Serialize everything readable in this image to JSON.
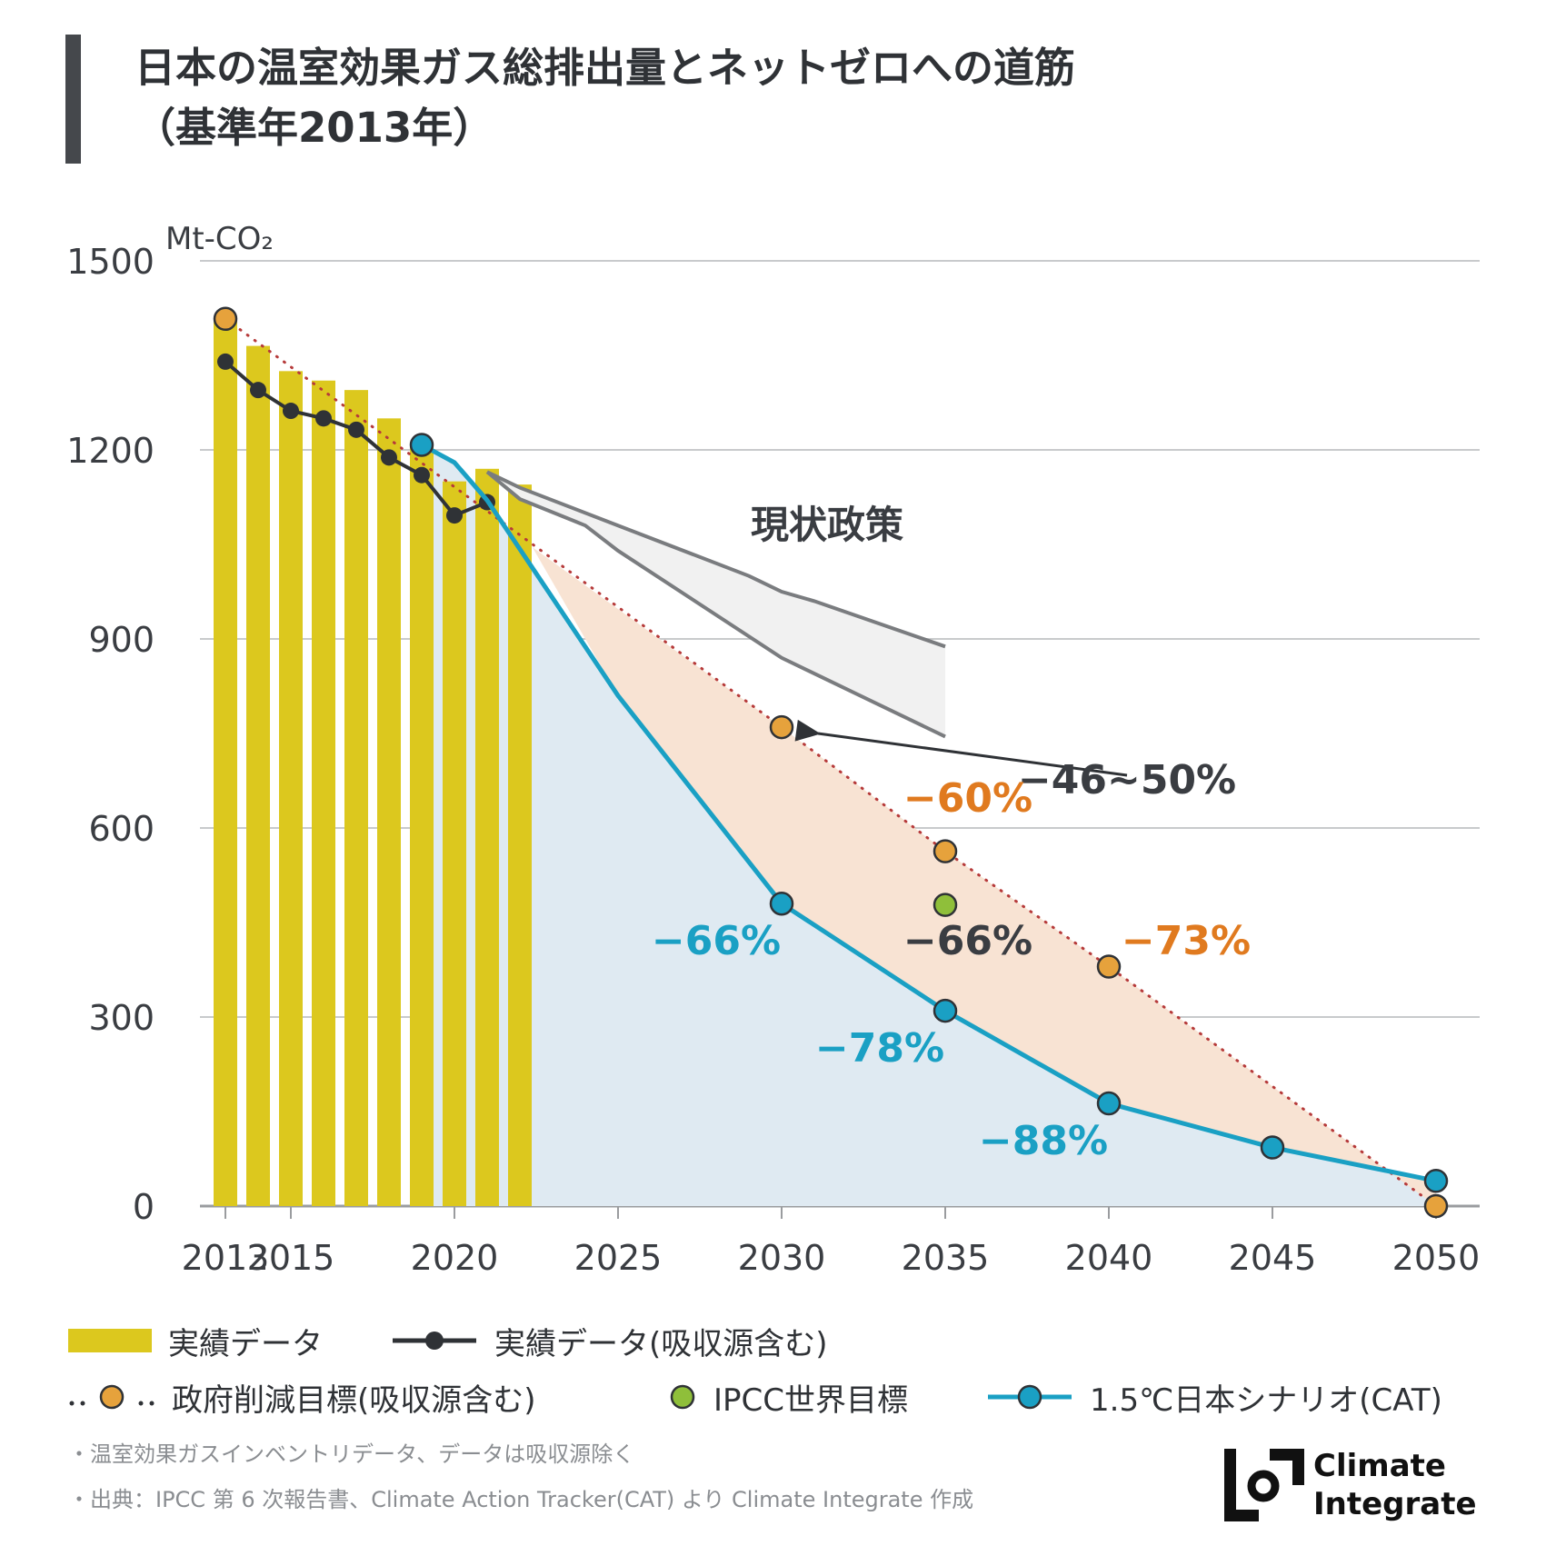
{
  "title": {
    "line1": "日本の温室効果ガス総排出量とネットゼロへの道筋",
    "line2": "（基準年2013年）"
  },
  "chart_data": {
    "type": "bar",
    "unit_label": "Mt-CO₂",
    "ylim": [
      0,
      1500
    ],
    "xlim": [
      2013,
      2050
    ],
    "y_ticks": [
      0,
      300,
      600,
      900,
      1200,
      1500
    ],
    "x_ticks": [
      2013,
      2015,
      2020,
      2025,
      2030,
      2035,
      2040,
      2045,
      2050
    ],
    "grid": true,
    "series": [
      {
        "name": "実績データ",
        "kind": "bar",
        "color": "#dcc81e",
        "x": [
          2013,
          2014,
          2015,
          2016,
          2017,
          2018,
          2019,
          2020,
          2021,
          2022
        ],
        "values": [
          1410,
          1365,
          1325,
          1310,
          1295,
          1250,
          1212,
          1150,
          1170,
          1145
        ]
      },
      {
        "name": "実績データ(吸収源含む)",
        "kind": "line",
        "color": "#2f3236",
        "x": [
          2013,
          2014,
          2015,
          2016,
          2017,
          2018,
          2019,
          2020,
          2021
        ],
        "values": [
          1340,
          1295,
          1262,
          1250,
          1232,
          1188,
          1160,
          1096,
          1117
        ]
      },
      {
        "name": "政府削減目標(吸収源含む)",
        "kind": "dotted-line-points",
        "color": "#e6a23c",
        "x": [
          2013,
          2030,
          2035,
          2040,
          2050
        ],
        "values": [
          1408,
          760,
          563,
          380,
          0
        ]
      },
      {
        "name": "IPCC世界目標",
        "kind": "point",
        "color": "#8fbf3a",
        "x": [
          2035
        ],
        "values": [
          478
        ]
      },
      {
        "name": "1.5℃日本シナリオ(CAT)",
        "kind": "line",
        "color": "#1aa0c4",
        "x": [
          2019,
          2020,
          2021,
          2025,
          2030,
          2035,
          2040,
          2045,
          2050
        ],
        "values": [
          1208,
          1180,
          1120,
          810,
          480,
          310,
          163,
          93,
          40
        ]
      },
      {
        "name": "現状政策 (upper)",
        "kind": "policy-line",
        "color": "#7a7c7f",
        "x": [
          2021,
          2022,
          2025,
          2029,
          2030,
          2031,
          2035
        ],
        "values": [
          1165,
          1140,
          1080,
          1000,
          975,
          960,
          888
        ]
      },
      {
        "name": "現状政策 (lower)",
        "kind": "policy-line",
        "color": "#7a7c7f",
        "x": [
          2021,
          2022,
          2024,
          2025,
          2030,
          2035
        ],
        "values": [
          1165,
          1122,
          1080,
          1040,
          870,
          745
        ]
      }
    ],
    "annotations": [
      {
        "text": "現状政策",
        "color": "#3a3d42"
      },
      {
        "text": "−46~50%",
        "color": "#3a3d42"
      },
      {
        "text": "−60%",
        "color": "#e07a1f"
      },
      {
        "text": "−73%",
        "color": "#e07a1f"
      },
      {
        "text": "−66%",
        "color": "#3a3d42"
      },
      {
        "text": "−66%",
        "color": "#1aa0c4"
      },
      {
        "text": "−78%",
        "color": "#1aa0c4"
      },
      {
        "text": "−88%",
        "color": "#1aa0c4"
      }
    ]
  },
  "legend": {
    "bar": "実績データ",
    "actual_line": "実績データ(吸収源含む)",
    "gov_target": "政府削減目標(吸収源含む)",
    "ipcc": "IPCC世界目標",
    "cat": "1.5℃日本シナリオ(CAT)"
  },
  "notes": [
    "・温室効果ガスインベントリデータ、データは吸収源除く",
    "・出典：IPCC 第 6 次報告書、Climate Action Tracker(CAT) より Climate Integrate 作成"
  ],
  "logo": {
    "line1": "Climate",
    "line2": "Integrate"
  }
}
